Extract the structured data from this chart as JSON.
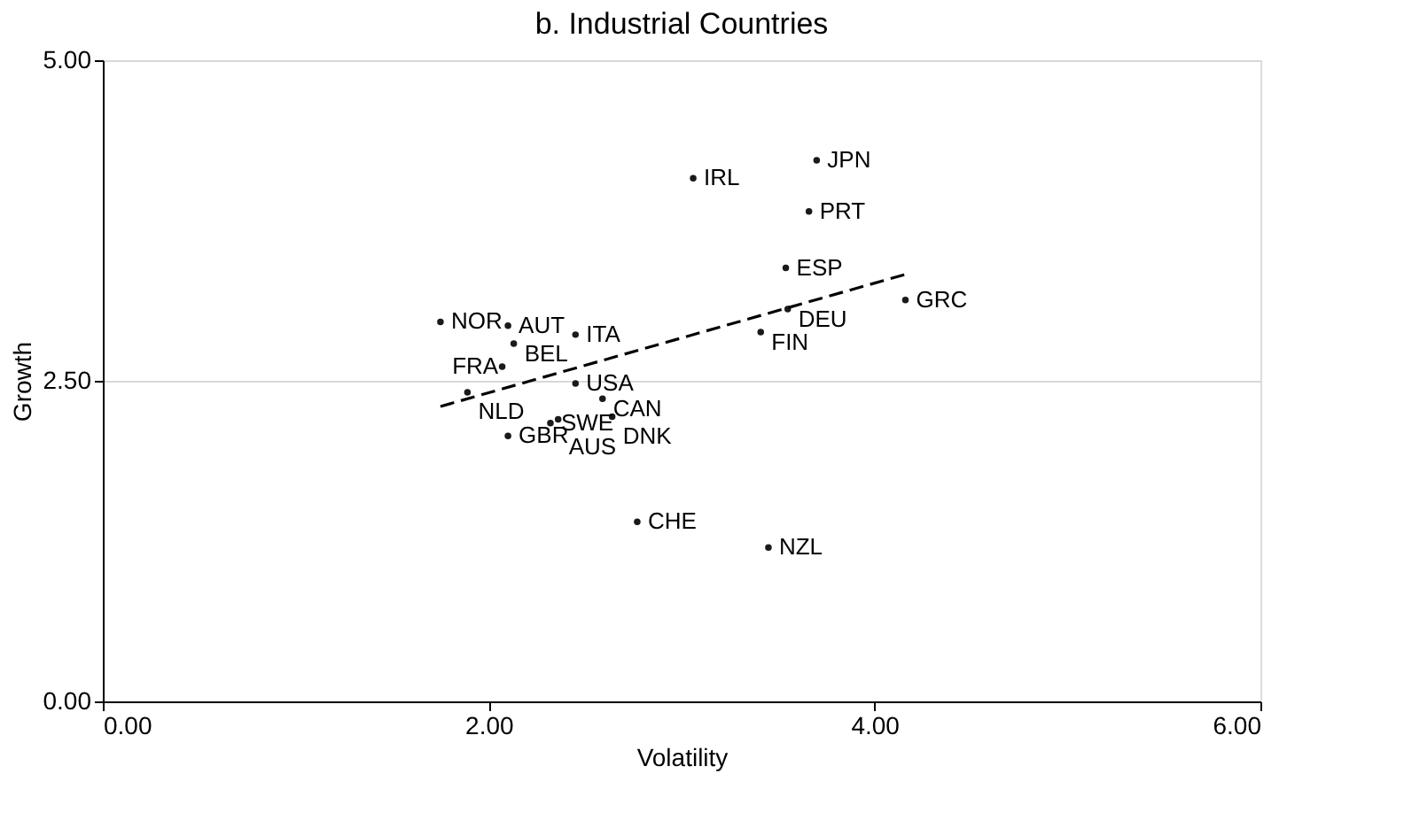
{
  "chart_data": {
    "type": "scatter",
    "title": "b. Industrial Countries",
    "xlabel": "Volatility",
    "ylabel": "Growth",
    "xlim": [
      0,
      6
    ],
    "ylim": [
      0,
      5
    ],
    "xticks": [
      {
        "value": 0,
        "label": "0.00"
      },
      {
        "value": 2,
        "label": "2.00"
      },
      {
        "value": 4,
        "label": "4.00"
      },
      {
        "value": 6,
        "label": "6.00"
      }
    ],
    "yticks": [
      {
        "value": 0,
        "label": "0.00"
      },
      {
        "value": 2.5,
        "label": "2.50"
      },
      {
        "value": 5,
        "label": "5.00"
      }
    ],
    "grid": "y",
    "series": [
      {
        "color": "#1a1a1a",
        "marker": "circle",
        "x": [
          1.75,
          2.1,
          2.13,
          2.45,
          2.07,
          1.89,
          2.45,
          2.59,
          2.1,
          2.32,
          2.36,
          2.64,
          3.06,
          3.7,
          3.66,
          3.54,
          3.55,
          4.16,
          3.41,
          2.77,
          3.45
        ],
        "values": [
          2.96,
          2.93,
          2.79,
          2.86,
          2.61,
          2.41,
          2.48,
          2.36,
          2.07,
          2.17,
          2.2,
          2.22,
          4.08,
          4.22,
          3.82,
          3.38,
          3.06,
          3.13,
          2.88,
          1.4,
          1.2
        ],
        "value_labels": [
          "NOR",
          "AUT",
          "BEL",
          "ITA",
          "FRA",
          "NLD",
          "USA",
          "CAN",
          "GBR",
          "SWE",
          "AUS",
          "DNK",
          "IRL",
          "JPN",
          "PRT",
          "ESP",
          "DEU",
          "GRC",
          "FIN",
          "CHE",
          "NZL"
        ]
      },
      {
        "type": "line",
        "color": "#000000",
        "line_style": "dashed",
        "marker": "none",
        "x": [
          1.75,
          4.16
        ],
        "values": [
          2.3,
          3.33
        ]
      }
    ]
  }
}
